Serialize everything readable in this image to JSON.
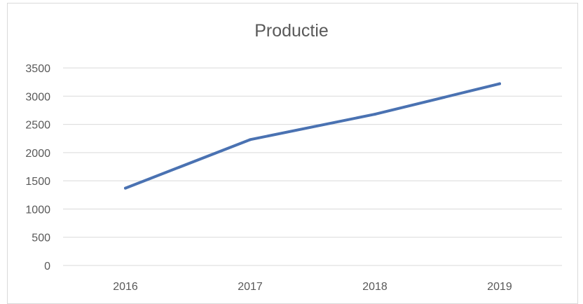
{
  "chart_data": {
    "type": "line",
    "title": "Productie",
    "xlabel": "",
    "ylabel": "",
    "categories": [
      "2016",
      "2017",
      "2018",
      "2019"
    ],
    "series": [
      {
        "values": [
          1370,
          2230,
          2680,
          3220
        ],
        "color": "#4a72b2"
      }
    ],
    "ylim": [
      0,
      3500
    ],
    "yticks": [
      0,
      500,
      1000,
      1500,
      2000,
      2500,
      3000,
      3500
    ],
    "grid": true,
    "legend": "none"
  }
}
